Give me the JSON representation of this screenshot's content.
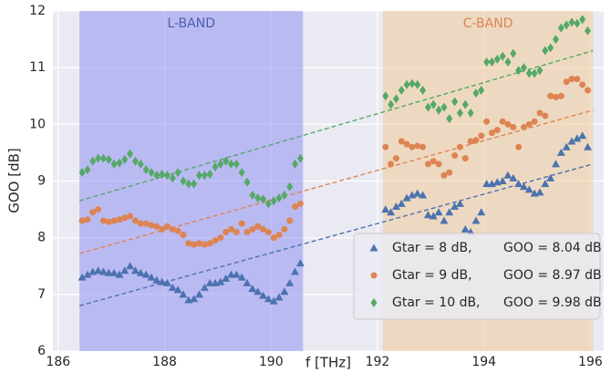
{
  "chart_data": {
    "type": "scatter",
    "xlabel": "f [THz]",
    "ylabel": "GOO [dB]",
    "xlim": [
      185.9,
      196.25
    ],
    "ylim": [
      6,
      12
    ],
    "xticks": [
      186,
      188,
      190,
      192,
      194,
      196
    ],
    "yticks": [
      6,
      7,
      8,
      9,
      10,
      11,
      12
    ],
    "grid": true,
    "legend": "lower right",
    "bands": [
      {
        "label": "L-BAND",
        "x": [
          186.4,
          190.6
        ],
        "color": "#8a8af2",
        "label_color": "#4a5fae"
      },
      {
        "label": "C-BAND",
        "x": [
          192.1,
          196.05
        ],
        "color": "#f0c890",
        "label_color": "#dd8452"
      }
    ],
    "x": [
      186.45,
      186.55,
      186.65,
      186.75,
      186.85,
      186.95,
      187.05,
      187.15,
      187.25,
      187.35,
      187.45,
      187.55,
      187.65,
      187.75,
      187.85,
      187.95,
      188.05,
      188.15,
      188.25,
      188.35,
      188.45,
      188.55,
      188.65,
      188.75,
      188.85,
      188.95,
      189.05,
      189.15,
      189.25,
      189.35,
      189.45,
      189.55,
      189.65,
      189.75,
      189.85,
      189.95,
      190.05,
      190.15,
      190.25,
      190.35,
      190.45,
      190.55,
      192.15,
      192.25,
      192.35,
      192.45,
      192.55,
      192.65,
      192.75,
      192.85,
      192.95,
      193.05,
      193.15,
      193.25,
      193.35,
      193.45,
      193.55,
      193.65,
      193.75,
      193.85,
      193.95,
      194.05,
      194.15,
      194.25,
      194.35,
      194.45,
      194.55,
      194.65,
      194.75,
      194.85,
      194.95,
      195.05,
      195.15,
      195.25,
      195.35,
      195.45,
      195.55,
      195.65,
      195.75,
      195.85,
      195.95
    ],
    "series": [
      {
        "name": "Gtar = 8 dB,",
        "mean_label": "GOO = 8.04 dB",
        "color": "#4c72b0",
        "marker": "triangle",
        "trend": {
          "x": [
            186.4,
            196.05
          ],
          "y": [
            6.8,
            9.3
          ]
        },
        "values": [
          7.3,
          7.35,
          7.4,
          7.42,
          7.4,
          7.38,
          7.38,
          7.35,
          7.42,
          7.5,
          7.42,
          7.38,
          7.35,
          7.3,
          7.25,
          7.22,
          7.2,
          7.12,
          7.08,
          7.0,
          6.9,
          6.92,
          7.0,
          7.12,
          7.2,
          7.2,
          7.22,
          7.28,
          7.35,
          7.35,
          7.3,
          7.2,
          7.1,
          7.05,
          6.98,
          6.92,
          6.88,
          6.95,
          7.05,
          7.2,
          7.4,
          7.55,
          8.5,
          8.45,
          8.55,
          8.6,
          8.7,
          8.75,
          8.78,
          8.75,
          8.4,
          8.38,
          8.45,
          8.3,
          8.45,
          8.55,
          8.6,
          8.15,
          8.1,
          8.3,
          8.45,
          8.95,
          8.95,
          8.98,
          9.0,
          9.1,
          9.05,
          8.95,
          8.9,
          8.85,
          8.78,
          8.8,
          8.95,
          9.05,
          9.3,
          9.5,
          9.6,
          9.7,
          9.75,
          9.8,
          9.6
        ]
      },
      {
        "name": "Gtar = 9 dB,",
        "mean_label": "GOO = 8.97 dB",
        "color": "#dd8452",
        "marker": "circle",
        "trend": {
          "x": [
            186.4,
            196.05
          ],
          "y": [
            7.72,
            10.25
          ]
        },
        "values": [
          8.3,
          8.32,
          8.45,
          8.5,
          8.3,
          8.28,
          8.3,
          8.32,
          8.35,
          8.38,
          8.3,
          8.25,
          8.25,
          8.22,
          8.2,
          8.15,
          8.2,
          8.15,
          8.12,
          8.05,
          7.9,
          7.88,
          7.9,
          7.88,
          7.9,
          7.95,
          8.0,
          8.1,
          8.15,
          8.1,
          8.25,
          8.1,
          8.15,
          8.2,
          8.15,
          8.1,
          8.0,
          8.05,
          8.15,
          8.3,
          8.55,
          8.6,
          9.6,
          9.3,
          9.4,
          9.7,
          9.65,
          9.6,
          9.62,
          9.6,
          9.3,
          9.35,
          9.3,
          9.1,
          9.15,
          9.45,
          9.6,
          9.4,
          9.7,
          9.72,
          9.8,
          10.05,
          9.85,
          9.9,
          10.05,
          10.0,
          9.95,
          9.6,
          9.95,
          10.0,
          10.05,
          10.2,
          10.15,
          10.5,
          10.48,
          10.5,
          10.75,
          10.8,
          10.8,
          10.7,
          10.6
        ]
      },
      {
        "name": "Gtar = 10 dB,",
        "mean_label": "GOO = 9.98 dB",
        "color": "#55a868",
        "marker": "diamond",
        "trend": {
          "x": [
            186.4,
            196.05
          ],
          "y": [
            8.65,
            11.3
          ]
        },
        "values": [
          9.15,
          9.2,
          9.35,
          9.4,
          9.4,
          9.38,
          9.3,
          9.32,
          9.38,
          9.48,
          9.35,
          9.3,
          9.2,
          9.15,
          9.1,
          9.12,
          9.1,
          9.05,
          9.15,
          9.0,
          8.95,
          8.95,
          9.1,
          9.1,
          9.12,
          9.25,
          9.3,
          9.35,
          9.3,
          9.3,
          9.15,
          8.98,
          8.75,
          8.7,
          8.68,
          8.6,
          8.65,
          8.7,
          8.75,
          8.9,
          9.3,
          9.4,
          10.5,
          10.35,
          10.45,
          10.6,
          10.7,
          10.72,
          10.7,
          10.6,
          10.3,
          10.35,
          10.25,
          10.3,
          10.1,
          10.4,
          10.2,
          10.35,
          10.2,
          10.55,
          10.6,
          11.1,
          11.1,
          11.15,
          11.2,
          11.1,
          11.25,
          10.95,
          11.0,
          10.9,
          10.9,
          10.95,
          11.3,
          11.35,
          11.5,
          11.7,
          11.75,
          11.8,
          11.78,
          11.85,
          11.65
        ]
      }
    ]
  }
}
